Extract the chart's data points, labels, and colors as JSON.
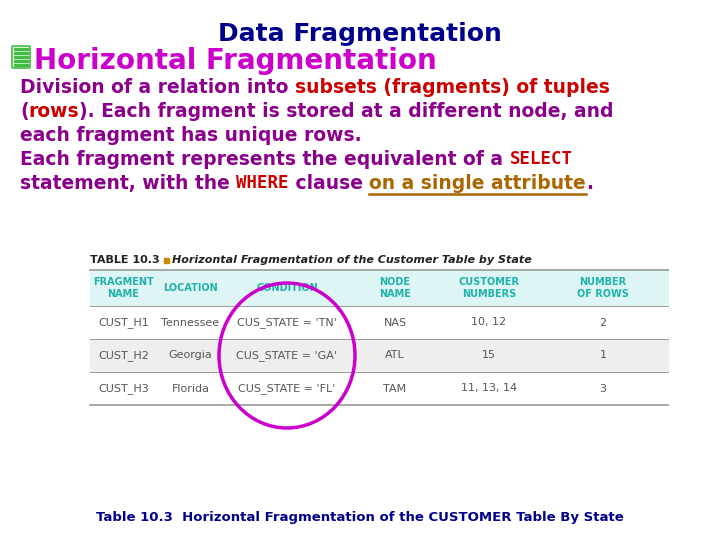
{
  "title": "Data Fragmentation",
  "title_color": "#00008B",
  "title_fontsize": 18,
  "subtitle": "Horizontal Fragmentation",
  "subtitle_color": "#CC00CC",
  "subtitle_fontsize": 20,
  "bullet_color": "#44BB44",
  "body_color": "#8B008B",
  "highlight_color": "#CC0000",
  "underline_color": "#AA6600",
  "table_title_bold": "TABLE 10.3",
  "table_title_rest": "  Horizontal Fragmentation of the Customer Table by State",
  "table_headers": [
    "FRAGMENT\nNAME",
    "LOCATION",
    "CONDITION",
    "NODE\nNAME",
    "CUSTOMER\nNUMBERS",
    "NUMBER\nOF ROWS"
  ],
  "table_data": [
    [
      "CUST_H1",
      "Tennessee",
      "CUS_STATE = 'TN'",
      "NAS",
      "10, 12",
      "2"
    ],
    [
      "CUST_H2",
      "Georgia",
      "CUS_STATE = 'GA'",
      "ATL",
      "15",
      "1"
    ],
    [
      "CUST_H3",
      "Florida",
      "CUS_STATE = 'FL'",
      "TAM",
      "11, 13, 14",
      "3"
    ]
  ],
  "caption": "Table 10.3  Horizontal Fragmentation of the CUSTOMER Table By State",
  "caption_color": "#00008B",
  "bg_color": "#FFFFFF",
  "table_header_color": "#20B2AA",
  "table_text_color": "#555555",
  "oval_color": "#CC00CC"
}
